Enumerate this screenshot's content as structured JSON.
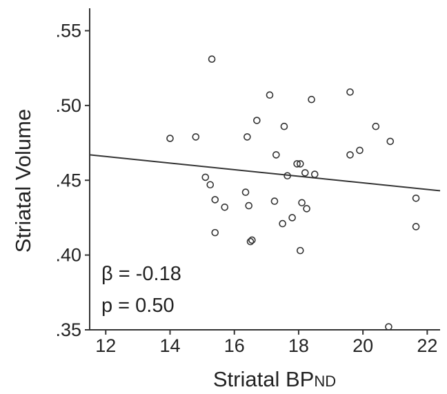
{
  "chart_data": {
    "type": "scatter",
    "xlabel": "Striatal BP",
    "xlabel_subscript": "ND",
    "ylabel": "Striatal Volume",
    "xlim": [
      11.5,
      22.4
    ],
    "ylim": [
      0.35,
      0.565
    ],
    "x_ticks": [
      12,
      14,
      16,
      18,
      20,
      22
    ],
    "x_tick_labels": [
      "12",
      "14",
      "16",
      "18",
      "20",
      "22"
    ],
    "y_ticks": [
      0.35,
      0.4,
      0.45,
      0.5,
      0.55
    ],
    "y_tick_labels": [
      ".35",
      ".40",
      ".45",
      ".50",
      ".55"
    ],
    "annotations": [
      "β = -0.18",
      "p = 0.50"
    ],
    "fit_line": {
      "x": [
        11.5,
        22.4
      ],
      "y": [
        0.467,
        0.443
      ]
    },
    "points": [
      {
        "x": 15.3,
        "y": 0.531
      },
      {
        "x": 14.0,
        "y": 0.478
      },
      {
        "x": 14.8,
        "y": 0.479
      },
      {
        "x": 15.1,
        "y": 0.452
      },
      {
        "x": 15.25,
        "y": 0.447
      },
      {
        "x": 15.4,
        "y": 0.437
      },
      {
        "x": 15.7,
        "y": 0.432
      },
      {
        "x": 15.4,
        "y": 0.415
      },
      {
        "x": 16.35,
        "y": 0.442
      },
      {
        "x": 16.4,
        "y": 0.479
      },
      {
        "x": 16.45,
        "y": 0.433
      },
      {
        "x": 16.5,
        "y": 0.409
      },
      {
        "x": 16.55,
        "y": 0.41
      },
      {
        "x": 16.7,
        "y": 0.49
      },
      {
        "x": 17.1,
        "y": 0.507
      },
      {
        "x": 17.25,
        "y": 0.436
      },
      {
        "x": 17.3,
        "y": 0.467
      },
      {
        "x": 17.55,
        "y": 0.486
      },
      {
        "x": 17.5,
        "y": 0.421
      },
      {
        "x": 17.65,
        "y": 0.453
      },
      {
        "x": 17.8,
        "y": 0.425
      },
      {
        "x": 17.95,
        "y": 0.461
      },
      {
        "x": 18.05,
        "y": 0.461
      },
      {
        "x": 18.05,
        "y": 0.403
      },
      {
        "x": 18.1,
        "y": 0.435
      },
      {
        "x": 18.2,
        "y": 0.455
      },
      {
        "x": 18.25,
        "y": 0.431
      },
      {
        "x": 18.4,
        "y": 0.504
      },
      {
        "x": 18.5,
        "y": 0.454
      },
      {
        "x": 19.6,
        "y": 0.509
      },
      {
        "x": 19.6,
        "y": 0.467
      },
      {
        "x": 19.9,
        "y": 0.47
      },
      {
        "x": 20.4,
        "y": 0.486
      },
      {
        "x": 20.85,
        "y": 0.476
      },
      {
        "x": 20.8,
        "y": 0.352
      },
      {
        "x": 21.65,
        "y": 0.438
      },
      {
        "x": 21.65,
        "y": 0.419
      }
    ]
  }
}
